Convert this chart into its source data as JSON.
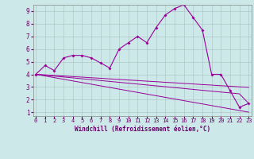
{
  "xlabel": "Windchill (Refroidissement éolien,°C)",
  "x_hours": [
    0,
    1,
    2,
    3,
    4,
    5,
    6,
    7,
    8,
    9,
    10,
    11,
    12,
    13,
    14,
    15,
    16,
    17,
    18,
    19,
    20,
    21,
    22,
    23
  ],
  "main_line": [
    4.0,
    4.7,
    4.3,
    5.3,
    5.5,
    5.5,
    5.3,
    4.9,
    4.5,
    6.0,
    6.5,
    7.0,
    6.5,
    7.7,
    8.7,
    9.2,
    9.5,
    8.5,
    7.5,
    4.0,
    4.0,
    2.7,
    1.4,
    1.7
  ],
  "linear_line1": [
    4.0,
    3.93,
    3.86,
    3.79,
    3.72,
    3.65,
    3.58,
    3.51,
    3.44,
    3.37,
    3.3,
    3.23,
    3.16,
    3.09,
    3.02,
    2.95,
    2.88,
    2.81,
    2.74,
    2.67,
    2.6,
    2.53,
    2.46,
    1.7
  ],
  "linear_line2": [
    4.0,
    3.96,
    3.91,
    3.87,
    3.82,
    3.78,
    3.73,
    3.69,
    3.64,
    3.6,
    3.55,
    3.51,
    3.46,
    3.42,
    3.37,
    3.33,
    3.28,
    3.24,
    3.19,
    3.15,
    3.1,
    3.06,
    3.01,
    2.97
  ],
  "linear_line3": [
    4.0,
    3.87,
    3.74,
    3.61,
    3.48,
    3.35,
    3.22,
    3.09,
    2.96,
    2.83,
    2.7,
    2.57,
    2.44,
    2.31,
    2.18,
    2.05,
    1.92,
    1.79,
    1.66,
    1.53,
    1.4,
    1.27,
    1.14,
    1.01
  ],
  "line_color": "#990099",
  "bg_color": "#cce8e8",
  "grid_color": "#b0c8c8",
  "yticks": [
    1,
    2,
    3,
    4,
    5,
    6,
    7,
    8,
    9
  ],
  "xticks": [
    0,
    1,
    2,
    3,
    4,
    5,
    6,
    7,
    8,
    9,
    10,
    11,
    12,
    13,
    14,
    15,
    16,
    17,
    18,
    19,
    20,
    21,
    22,
    23
  ]
}
